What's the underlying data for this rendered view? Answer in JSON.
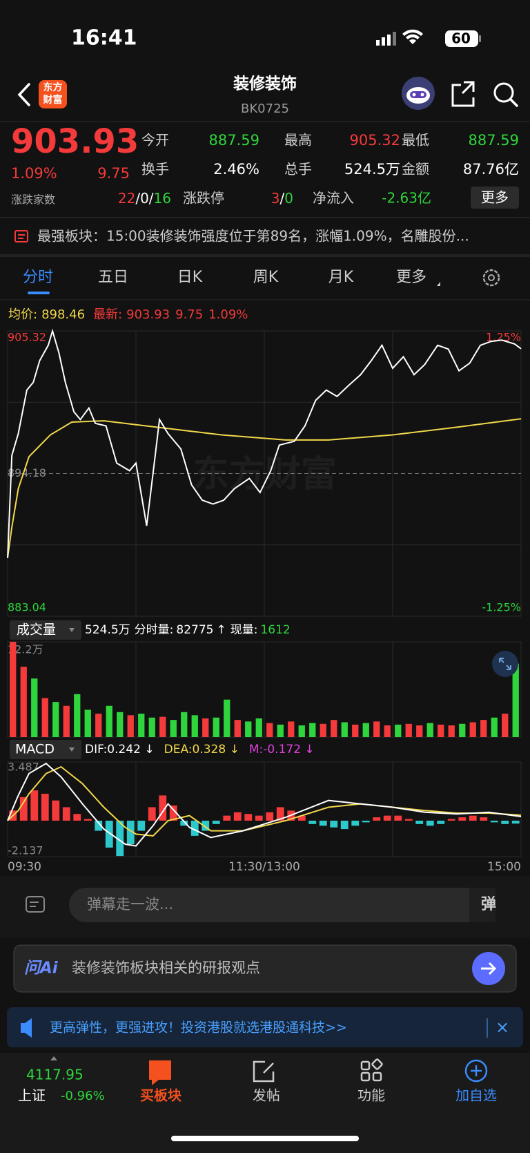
{
  "status_bar": {
    "time": "16:41",
    "battery": "60"
  },
  "header": {
    "logo": [
      "东方",
      "财富"
    ],
    "title": "装修装饰",
    "code": "BK0725"
  },
  "quote": {
    "price": "903.93",
    "change_pct": "1.09%",
    "change": "9.75",
    "fields": [
      {
        "label": "今开",
        "value": "887.59",
        "color": "#2fd53c"
      },
      {
        "label": "最高",
        "value": "905.32",
        "color": "#f43a3a"
      },
      {
        "label": "最低",
        "value": "887.59",
        "color": "#2fd53c"
      },
      {
        "label": "换手",
        "value": "2.46%",
        "color": "#ffffff"
      },
      {
        "label": "总手",
        "value": "524.5万",
        "color": "#ffffff"
      },
      {
        "label": "金额",
        "value": "87.76亿",
        "color": "#ffffff"
      }
    ],
    "breadth_label": "涨跌家数",
    "breadth": [
      "22",
      "0",
      "16"
    ],
    "separator": "/",
    "limit_label": "涨跌停",
    "limit": [
      "3",
      "0"
    ],
    "inflow_label": "净流入",
    "inflow": "-2.63亿",
    "more": "更多"
  },
  "news": "最强板块：15:00装修装饰强度位于第89名，涨幅1.09%，名雕股份...",
  "tabs": [
    "分时",
    "五日",
    "日K",
    "周K",
    "月K",
    "更多"
  ],
  "intraday": {
    "info": {
      "avg_label": "均价:",
      "avg": "898.46",
      "last_label": "最新:",
      "last": "903.93",
      "change": "9.75",
      "change_pct": "1.09%"
    },
    "xlim": [
      0,
      240
    ],
    "ylim": [
      883.04,
      905.32
    ],
    "yticks": [
      905.32,
      894.18,
      883.04
    ],
    "pct_labels": [
      "1.25%",
      "-1.25%"
    ],
    "price": {
      "color": "#ffffff",
      "x": [
        0,
        2,
        5,
        9,
        12,
        15,
        19,
        21,
        24,
        27,
        31,
        34,
        38,
        41,
        46,
        51,
        57,
        60,
        65,
        69,
        71,
        75,
        81,
        86,
        91,
        96,
        101,
        106,
        113,
        118,
        123,
        127,
        134,
        139,
        144,
        149,
        154,
        159,
        165,
        170,
        175,
        180,
        185,
        190,
        195,
        201,
        206,
        211,
        216,
        221,
        226,
        231,
        237,
        240
      ],
      "values": [
        887.59,
        895.6,
        897.3,
        900.7,
        901.3,
        903.0,
        904.2,
        905.32,
        903.6,
        901.3,
        899.0,
        898.4,
        899.3,
        898.1,
        897.9,
        895.0,
        894.4,
        895.0,
        890.1,
        895.6,
        898.4,
        897.3,
        896.1,
        893.3,
        892.1,
        891.8,
        892.1,
        893.0,
        893.8,
        892.7,
        894.4,
        896.4,
        896.7,
        897.9,
        899.9,
        900.7,
        900.2,
        901.0,
        901.9,
        903.0,
        904.2,
        902.4,
        903.3,
        901.9,
        902.7,
        904.2,
        903.9,
        902.2,
        902.8,
        904.2,
        904.5,
        904.6,
        904.3,
        903.93
      ]
    },
    "avg": {
      "color": "#f2d84a",
      "x": [
        0,
        2,
        5,
        10,
        20,
        30,
        45,
        60,
        80,
        100,
        130,
        150,
        180,
        210,
        240
      ],
      "values": [
        887.59,
        890,
        893,
        895.5,
        897.2,
        898.2,
        898.3,
        898.0,
        897.6,
        897.2,
        896.8,
        896.8,
        897.2,
        897.8,
        898.46
      ]
    },
    "times": [
      "09:30",
      "11:30/13:00",
      "15:00"
    ]
  },
  "volume": {
    "selector": "成交量",
    "total": "524.5万",
    "minute_label": "分时量:",
    "minute": "82775",
    "arrow": "↑",
    "now_label": "现量:",
    "now": "1612",
    "ylim": [
      0,
      12.2
    ],
    "yticks": [
      {
        "value": 12.2,
        "label": "12.2万"
      }
    ],
    "up_color": "#f43a3a",
    "down_color": "#2fd53c",
    "values": [
      12.2,
      9,
      7.5,
      5,
      4.5,
      4,
      5.5,
      3.5,
      3,
      4,
      3.2,
      2.8,
      3,
      2.5,
      2.6,
      2.2,
      3.2,
      2.8,
      2.4,
      2.5,
      4.8,
      2.2,
      2,
      2.4,
      1.8,
      1.6,
      2,
      1.5,
      1.8,
      1.7,
      2.2,
      1.9,
      1.6,
      1.8,
      2.0,
      1.5,
      1.6,
      1.7,
      1.5,
      1.8,
      1.6,
      1.5,
      1.7,
      1.9,
      2.2,
      2.5,
      3,
      9.4
    ],
    "up": [
      true,
      true,
      false,
      true,
      false,
      true,
      false,
      false,
      true,
      false,
      false,
      true,
      false,
      false,
      true,
      false,
      false,
      false,
      true,
      false,
      false,
      true,
      false,
      false,
      true,
      false,
      true,
      false,
      false,
      true,
      true,
      false,
      true,
      false,
      true,
      true,
      false,
      true,
      true,
      false,
      true,
      true,
      false,
      true,
      true,
      false,
      true,
      false
    ]
  },
  "macd": {
    "selector": "MACD",
    "dif_text": "DIF:0.242 ↓",
    "dea_text": "DEA:0.328 ↓",
    "m_text": "M:-0.172 ↓",
    "ylim": [
      -2.137,
      3.487
    ],
    "yticks": [
      3.487,
      -2.137
    ],
    "pos_color": "#f43a3a",
    "neg_color": "#2cc8cc",
    "hist": [
      0.6,
      1.4,
      1.8,
      1.6,
      1.2,
      0.8,
      0.4,
      0.1,
      -0.6,
      -1.6,
      -2.1,
      -1.4,
      -0.6,
      0.8,
      1.5,
      0.9,
      -0.3,
      -0.9,
      -0.6,
      -0.2,
      0.3,
      0.5,
      0.4,
      0.3,
      0.5,
      0.8,
      0.6,
      0.3,
      -0.2,
      -0.3,
      -0.4,
      -0.5,
      -0.3,
      -0.1,
      0.2,
      0.3,
      0.3,
      0.1,
      -0.2,
      -0.3,
      -0.2,
      0.1,
      0.2,
      0.3,
      0.2,
      -0.1,
      -0.2,
      -0.172
    ],
    "x": [
      0,
      5,
      10,
      18,
      25,
      35,
      45,
      55,
      60,
      68,
      75,
      85,
      95,
      110,
      130,
      150,
      165,
      180,
      195,
      210,
      225,
      240
    ],
    "dif": {
      "color": "#ffffff",
      "values": [
        0,
        1.5,
        2.8,
        3.4,
        2.6,
        1.0,
        -0.5,
        -1.4,
        -1.5,
        -0.3,
        1.0,
        -0.4,
        -1.0,
        -0.6,
        0.2,
        1.2,
        1.0,
        0.8,
        0.5,
        0.4,
        0.5,
        0.242
      ]
    },
    "dea": {
      "color": "#f2d84a",
      "values": [
        0,
        0.6,
        1.6,
        2.8,
        3.2,
        2.2,
        0.8,
        -0.4,
        -0.8,
        -0.9,
        0,
        0.3,
        -0.6,
        -0.6,
        0,
        0.8,
        1.0,
        0.8,
        0.6,
        0.45,
        0.45,
        0.328
      ]
    }
  },
  "comment": {
    "placeholder": "弹幕走一波...",
    "button": "弹"
  },
  "ai": {
    "brand": "问Ai",
    "prompt": "装修装饰板块相关的研报观点"
  },
  "ad": {
    "text": "更高弹性，更强进攻！投资港股就选港股通科技>>",
    "close": "×"
  },
  "nav": {
    "index": {
      "value": "4117.95",
      "name": "上证",
      "change": "-0.96%"
    },
    "items": [
      "买板块",
      "发帖",
      "功能",
      "加自选"
    ]
  }
}
